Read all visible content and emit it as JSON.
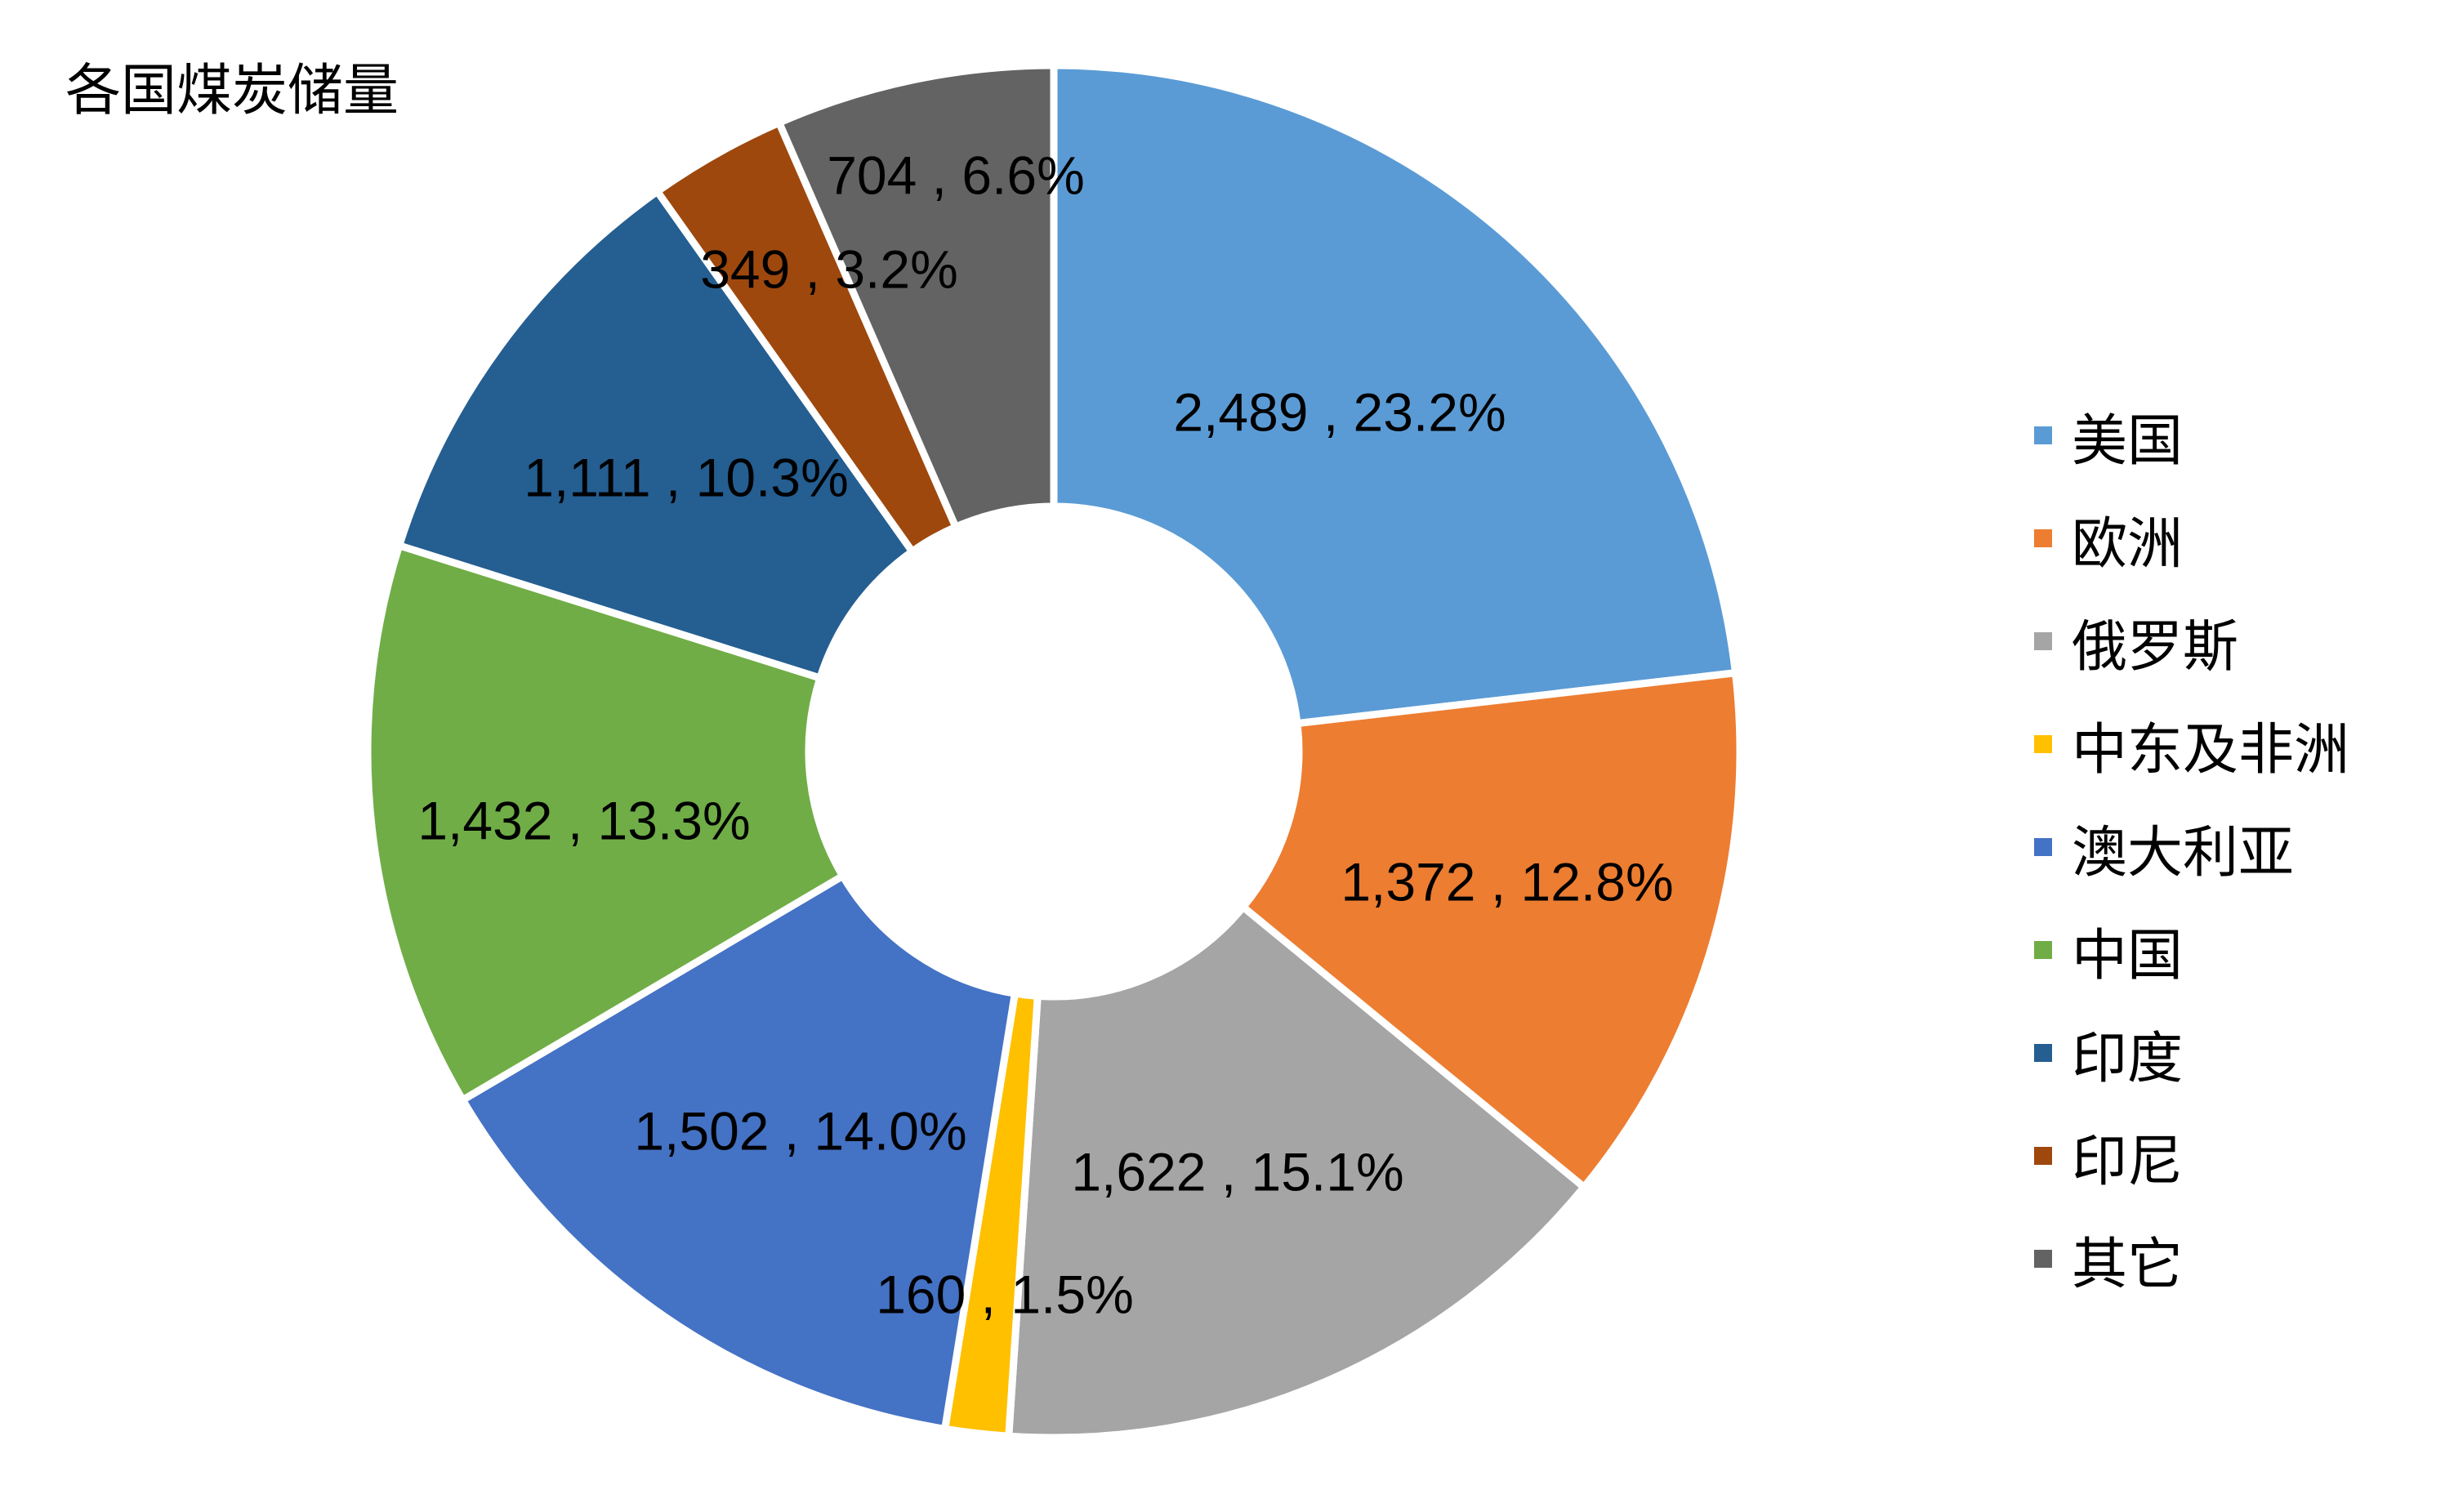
{
  "chart_data": {
    "type": "pie",
    "style": "donut",
    "title": "各国煤炭储量",
    "legend_position": "right",
    "categories": [
      "美国",
      "欧洲",
      "俄罗斯",
      "中东及非洲",
      "澳大利亚",
      "中国",
      "印度",
      "印尼",
      "其它"
    ],
    "values": [
      2489,
      1372,
      1622,
      160,
      1502,
      1432,
      1111,
      349,
      704
    ],
    "percentages": [
      23.2,
      12.8,
      15.1,
      1.5,
      14.0,
      13.3,
      10.3,
      3.2,
      6.6
    ],
    "labels": [
      "2,489 , 23.2%",
      "1,372 , 12.8%",
      "1,622 , 15.1%",
      "160 , 1.5%",
      "1,502 , 14.0%",
      "1,432 , 13.3%",
      "1,111 , 10.3%",
      "349 , 3.2%",
      "704 , 6.6%"
    ],
    "colors": [
      "#5b9bd5",
      "#ed7d31",
      "#a5a5a5",
      "#ffc000",
      "#4472c4",
      "#70ad47",
      "#255e91",
      "#9e480e",
      "#636363"
    ]
  }
}
